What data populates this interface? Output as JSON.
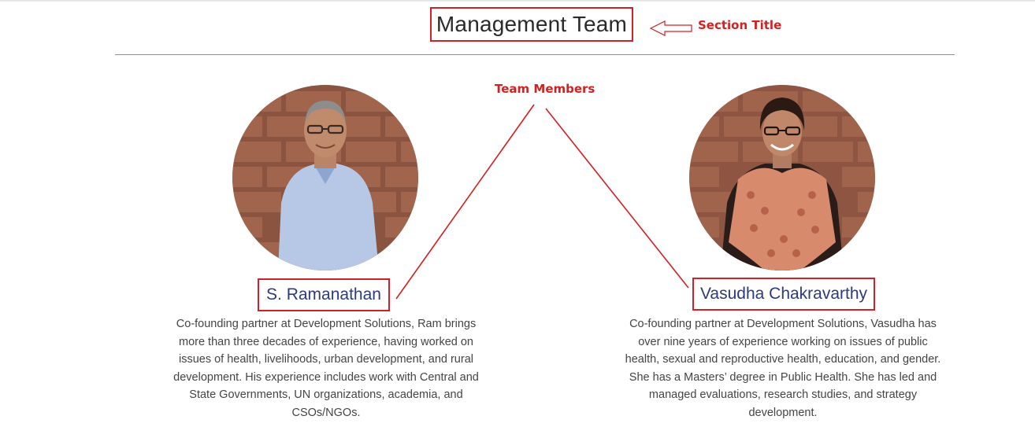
{
  "section": {
    "title": "Management Team"
  },
  "annotations": {
    "section_title": "Section Title",
    "team_members": "Team Members"
  },
  "members": [
    {
      "name": "S. Ramanathan",
      "photo_icon": "portrait-man-icon",
      "bio_lines": [
        "Co-founding partner at Development Solutions, Ram brings",
        "more than three decades of experience, having worked on",
        "issues of health, livelihoods, urban development, and rural",
        "development. His experience includes work with Central and",
        "State Governments, UN organizations, academia, and",
        "CSOs/NGOs."
      ]
    },
    {
      "name": "Vasudha Chakravarthy",
      "photo_icon": "portrait-woman-icon",
      "bio_lines": [
        "Co-founding partner at Development Solutions, Vasudha has",
        "over nine years of experience working on issues of public",
        "health, sexual and reproductive health, education, and gender.",
        "She has a Masters’ degree in Public Health. She has led and",
        "managed evaluations, research studies, and strategy",
        "development."
      ]
    }
  ],
  "colors": {
    "annotation_red": "#d42020",
    "name_blue": "#2e3a7c",
    "body_text": "#444444",
    "divider": "#8f8f8f"
  }
}
